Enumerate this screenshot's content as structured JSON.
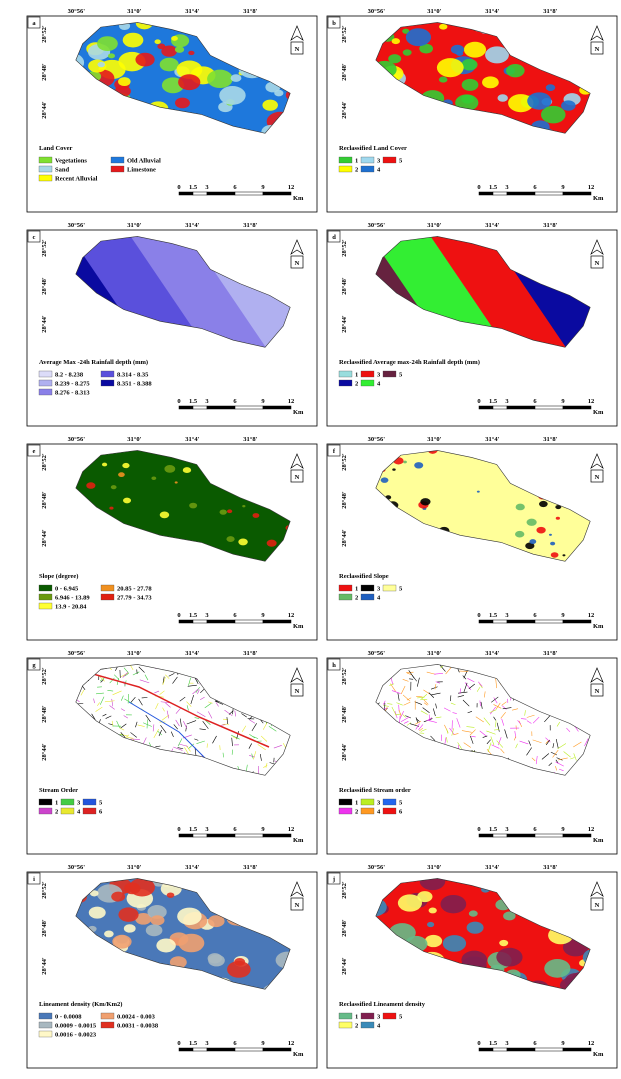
{
  "coords": {
    "top": [
      "30°56'",
      "31°0'",
      "31°4'",
      "31°8'"
    ],
    "left": [
      "28°52'",
      "28°48'",
      "28°44'"
    ]
  },
  "north": "N",
  "scale": [
    "0",
    "1.5",
    "3",
    "6",
    "9",
    "12"
  ],
  "scale_unit": "Km",
  "panels": [
    {
      "letter": "a",
      "legend_title": "Land Cover",
      "legend": [
        {
          "label": "Vegetations",
          "color": "#7fe030"
        },
        {
          "label": "Sand",
          "color": "#a8d8e8"
        },
        {
          "label": "Recent Alluvial",
          "color": "#ffff00"
        },
        {
          "label": "Old Alluvial",
          "color": "#1e78dc"
        },
        {
          "label": "Limestone",
          "color": "#e41a1c"
        }
      ]
    },
    {
      "letter": "b",
      "legend_title": "Reclassified Land Cover",
      "legend": [
        {
          "label": "1",
          "color": "#33cc33"
        },
        {
          "label": "2",
          "color": "#ffff00"
        },
        {
          "label": "3",
          "color": "#9fd8ee"
        },
        {
          "label": "4",
          "color": "#1e70d0"
        },
        {
          "label": "5",
          "color": "#ee1111"
        }
      ]
    },
    {
      "letter": "c",
      "legend_title": "Average Max -24h Rainfall depth (mm)",
      "legend": [
        {
          "label": "8.2 - 8.238",
          "color": "#dcdcf8"
        },
        {
          "label": "8.239 - 8.275",
          "color": "#b0b0f0"
        },
        {
          "label": "8.276 - 8.313",
          "color": "#8a80e8"
        },
        {
          "label": "8.314 - 8.35",
          "color": "#5a50dc"
        },
        {
          "label": "8.351 - 8.388",
          "color": "#0a0aa0"
        }
      ]
    },
    {
      "letter": "d",
      "legend_title": "Reclassified Average max-24h Rainfall depth (mm)",
      "legend": [
        {
          "label": "1",
          "color": "#99dddd"
        },
        {
          "label": "2",
          "color": "#0a0aa0"
        },
        {
          "label": "3",
          "color": "#ee1111"
        },
        {
          "label": "4",
          "color": "#33ee33"
        },
        {
          "label": "5",
          "color": "#66223f"
        }
      ]
    },
    {
      "letter": "e",
      "legend_title": "Slope (degree)",
      "legend": [
        {
          "label": "0 - 6.945",
          "color": "#0a5a00"
        },
        {
          "label": "6.946 - 13.89",
          "color": "#6a9a10"
        },
        {
          "label": "13.9 - 20.84",
          "color": "#ffff33"
        },
        {
          "label": "20.85 - 27.78",
          "color": "#f09020"
        },
        {
          "label": "27.79 - 34.73",
          "color": "#e02010"
        }
      ]
    },
    {
      "letter": "f",
      "legend_title": "Reclassified Slope",
      "legend": [
        {
          "label": "1",
          "color": "#ee1111"
        },
        {
          "label": "2",
          "color": "#66bb66"
        },
        {
          "label": "3",
          "color": "#000000"
        },
        {
          "label": "4",
          "color": "#1f5fbf"
        },
        {
          "label": "5",
          "color": "#ffff99"
        }
      ]
    },
    {
      "letter": "g",
      "legend_title": "Stream Order",
      "legend": [
        {
          "label": "1",
          "color": "#000000"
        },
        {
          "label": "2",
          "color": "#cc44cc"
        },
        {
          "label": "3",
          "color": "#44cc44"
        },
        {
          "label": "4",
          "color": "#e8e830"
        },
        {
          "label": "5",
          "color": "#2255dd"
        },
        {
          "label": "6",
          "color": "#dd2222"
        }
      ]
    },
    {
      "letter": "h",
      "legend_title": "Reclassified Stream order",
      "legend": [
        {
          "label": "1",
          "color": "#000000"
        },
        {
          "label": "2",
          "color": "#ee33ee"
        },
        {
          "label": "3",
          "color": "#bbee22"
        },
        {
          "label": "4",
          "color": "#ff9922"
        },
        {
          "label": "5",
          "color": "#2266ee"
        },
        {
          "label": "6",
          "color": "#ee1111"
        }
      ]
    },
    {
      "letter": "i",
      "legend_title": "Lineament density (Km/Km2)",
      "legend": [
        {
          "label": "0 - 0.0008",
          "color": "#4a78b8"
        },
        {
          "label": "0.0009 - 0.0015",
          "color": "#a8b8c0"
        },
        {
          "label": "0.0016 - 0.0023",
          "color": "#fff8c8"
        },
        {
          "label": "0.0024 - 0.003",
          "color": "#f0a070"
        },
        {
          "label": "0.0031 - 0.0038",
          "color": "#e03020"
        }
      ]
    },
    {
      "letter": "j",
      "legend_title": "Reclassified Lineament density",
      "legend": [
        {
          "label": "1",
          "color": "#66bb88"
        },
        {
          "label": "2",
          "color": "#ffff66"
        },
        {
          "label": "3",
          "color": "#801f4f"
        },
        {
          "label": "4",
          "color": "#3a8ab8"
        },
        {
          "label": "5",
          "color": "#ee1111"
        }
      ]
    }
  ]
}
